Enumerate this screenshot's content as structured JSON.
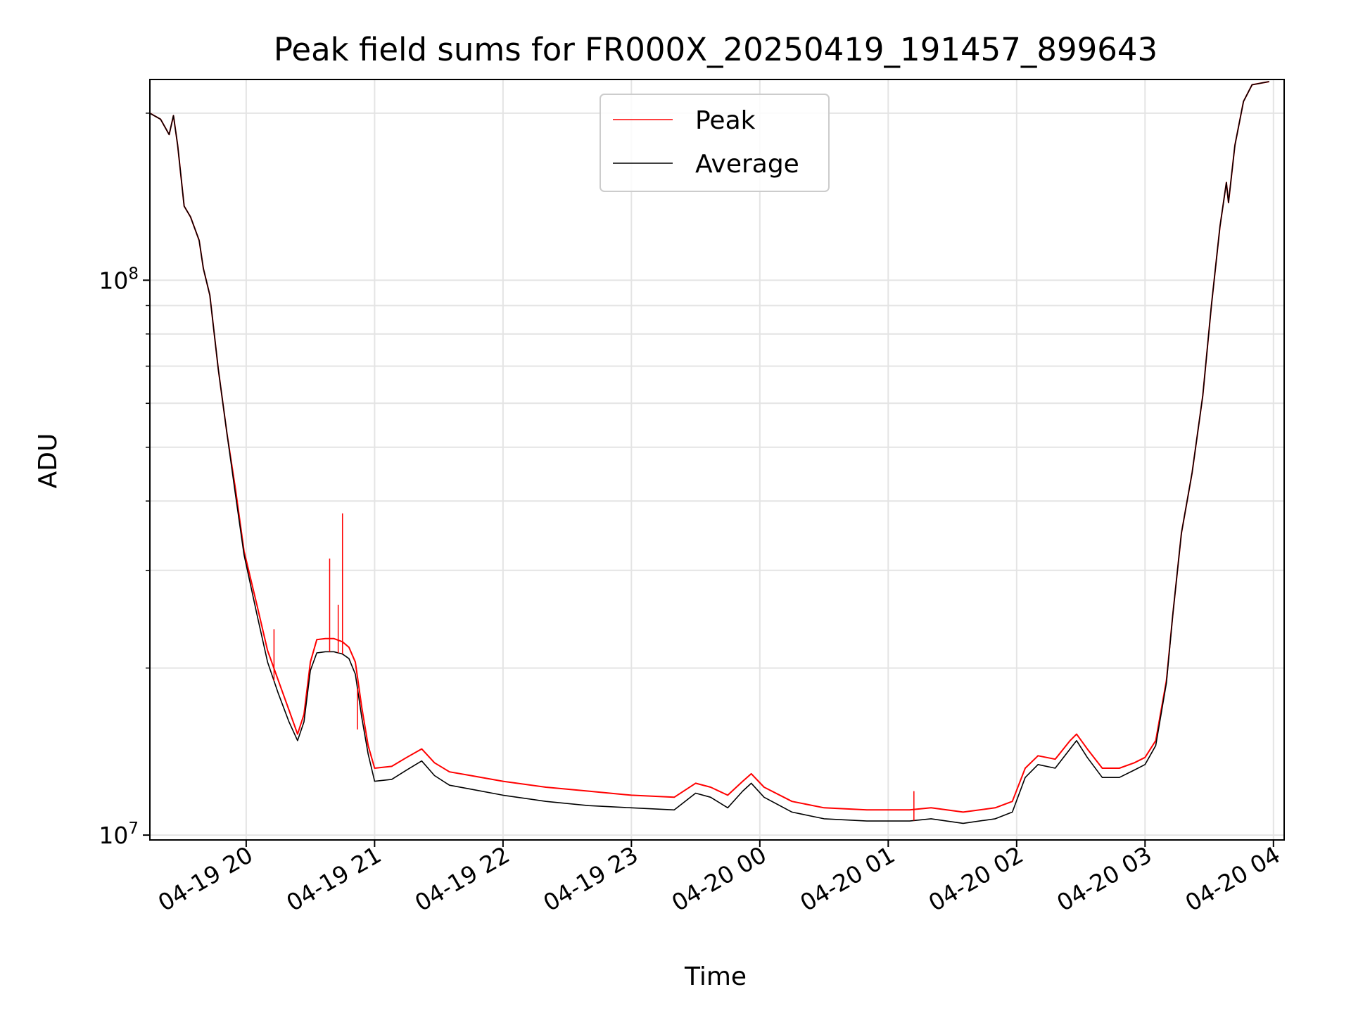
{
  "chart_data": {
    "type": "line",
    "title": "Peak field sums for FR000X_20250419_191457_899643",
    "xlabel": "Time",
    "ylabel": "ADU",
    "yscale": "log",
    "ylim": [
      9800000,
      230000000
    ],
    "xlim": [
      "2025-04-19 19:15",
      "2025-04-20 04:05"
    ],
    "grid": true,
    "legend_position": "top-center",
    "x_ticks": [
      {
        "t": "2025-04-19 20:00",
        "label": "04-19 20"
      },
      {
        "t": "2025-04-19 21:00",
        "label": "04-19 21"
      },
      {
        "t": "2025-04-19 22:00",
        "label": "04-19 22"
      },
      {
        "t": "2025-04-19 23:00",
        "label": "04-19 23"
      },
      {
        "t": "2025-04-20 00:00",
        "label": "04-20 00"
      },
      {
        "t": "2025-04-20 01:00",
        "label": "04-20 01"
      },
      {
        "t": "2025-04-20 02:00",
        "label": "04-20 02"
      },
      {
        "t": "2025-04-20 03:00",
        "label": "04-20 03"
      },
      {
        "t": "2025-04-20 04:00",
        "label": "04-20 04"
      }
    ],
    "y_major_ticks": [
      {
        "value": 10000000,
        "base": "10",
        "exp": "7"
      },
      {
        "value": 100000000,
        "base": "10",
        "exp": "8"
      }
    ],
    "series": [
      {
        "name": "Peak",
        "color": "#ff0000",
        "points": [
          [
            "2025-04-19 19:15",
            200000000
          ],
          [
            "2025-04-19 19:20",
            195000000
          ],
          [
            "2025-04-19 19:24",
            183000000
          ],
          [
            "2025-04-19 19:26",
            198000000
          ],
          [
            "2025-04-19 19:28",
            175000000
          ],
          [
            "2025-04-19 19:31",
            136000000
          ],
          [
            "2025-04-19 19:34",
            130000000
          ],
          [
            "2025-04-19 19:38",
            118000000
          ],
          [
            "2025-04-19 19:40",
            105000000
          ],
          [
            "2025-04-19 19:43",
            94000000
          ],
          [
            "2025-04-19 19:47",
            69000000
          ],
          [
            "2025-04-19 19:51",
            53000000
          ],
          [
            "2025-04-19 19:55",
            42000000
          ],
          [
            "2025-04-19 19:59",
            32500000
          ],
          [
            "2025-04-19 20:05",
            26000000
          ],
          [
            "2025-04-19 20:10",
            21500000
          ],
          [
            "2025-04-19 20:15",
            19000000
          ],
          [
            "2025-04-19 20:20",
            16800000
          ],
          [
            "2025-04-19 20:24",
            15200000
          ],
          [
            "2025-04-19 20:27",
            16500000
          ],
          [
            "2025-04-19 20:30",
            20500000
          ],
          [
            "2025-04-19 20:33",
            22500000
          ],
          [
            "2025-04-19 20:37",
            22600000
          ],
          [
            "2025-04-19 20:41",
            22600000
          ],
          [
            "2025-04-19 20:45",
            22300000
          ],
          [
            "2025-04-19 20:48",
            21800000
          ],
          [
            "2025-04-19 20:51",
            20500000
          ],
          [
            "2025-04-19 20:54",
            17000000
          ],
          [
            "2025-04-19 20:57",
            14500000
          ],
          [
            "2025-04-19 21:00",
            13200000
          ],
          [
            "2025-04-19 21:08",
            13300000
          ],
          [
            "2025-04-19 21:15",
            13800000
          ],
          [
            "2025-04-19 21:22",
            14300000
          ],
          [
            "2025-04-19 21:28",
            13500000
          ],
          [
            "2025-04-19 21:35",
            13000000
          ],
          [
            "2025-04-19 21:45",
            12800000
          ],
          [
            "2025-04-19 22:00",
            12500000
          ],
          [
            "2025-04-19 22:20",
            12200000
          ],
          [
            "2025-04-19 22:40",
            12000000
          ],
          [
            "2025-04-19 23:00",
            11800000
          ],
          [
            "2025-04-19 23:20",
            11700000
          ],
          [
            "2025-04-19 23:30",
            12400000
          ],
          [
            "2025-04-19 23:37",
            12200000
          ],
          [
            "2025-04-19 23:45",
            11800000
          ],
          [
            "2025-04-19 23:52",
            12500000
          ],
          [
            "2025-04-19 23:56",
            12900000
          ],
          [
            "2025-04-20 00:02",
            12200000
          ],
          [
            "2025-04-20 00:15",
            11500000
          ],
          [
            "2025-04-20 00:30",
            11200000
          ],
          [
            "2025-04-20 00:50",
            11100000
          ],
          [
            "2025-04-20 01:10",
            11100000
          ],
          [
            "2025-04-20 01:20",
            11200000
          ],
          [
            "2025-04-20 01:35",
            11000000
          ],
          [
            "2025-04-20 01:50",
            11200000
          ],
          [
            "2025-04-20 01:58",
            11500000
          ],
          [
            "2025-04-20 02:04",
            13200000
          ],
          [
            "2025-04-20 02:10",
            13900000
          ],
          [
            "2025-04-20 02:18",
            13700000
          ],
          [
            "2025-04-20 02:25",
            14800000
          ],
          [
            "2025-04-20 02:28",
            15200000
          ],
          [
            "2025-04-20 02:33",
            14300000
          ],
          [
            "2025-04-20 02:40",
            13200000
          ],
          [
            "2025-04-20 02:48",
            13200000
          ],
          [
            "2025-04-20 02:55",
            13500000
          ],
          [
            "2025-04-20 03:00",
            13800000
          ],
          [
            "2025-04-20 03:05",
            14800000
          ],
          [
            "2025-04-20 03:10",
            19000000
          ],
          [
            "2025-04-20 03:13",
            25000000
          ],
          [
            "2025-04-20 03:17",
            35000000
          ],
          [
            "2025-04-20 03:22",
            45000000
          ],
          [
            "2025-04-20 03:27",
            62000000
          ],
          [
            "2025-04-20 03:31",
            90000000
          ],
          [
            "2025-04-20 03:35",
            125000000
          ],
          [
            "2025-04-20 03:38",
            150000000
          ],
          [
            "2025-04-20 03:39",
            138000000
          ],
          [
            "2025-04-20 03:42",
            175000000
          ],
          [
            "2025-04-20 03:46",
            210000000
          ],
          [
            "2025-04-20 03:50",
            225000000
          ],
          [
            "2025-04-20 03:58",
            228000000
          ]
        ]
      },
      {
        "name": "Average",
        "color": "#000000",
        "points": [
          [
            "2025-04-19 19:15",
            200000000
          ],
          [
            "2025-04-19 19:20",
            195000000
          ],
          [
            "2025-04-19 19:24",
            183000000
          ],
          [
            "2025-04-19 19:26",
            198000000
          ],
          [
            "2025-04-19 19:28",
            175000000
          ],
          [
            "2025-04-19 19:31",
            136000000
          ],
          [
            "2025-04-19 19:34",
            130000000
          ],
          [
            "2025-04-19 19:38",
            118000000
          ],
          [
            "2025-04-19 19:40",
            105000000
          ],
          [
            "2025-04-19 19:43",
            94000000
          ],
          [
            "2025-04-19 19:47",
            69000000
          ],
          [
            "2025-04-19 19:51",
            53000000
          ],
          [
            "2025-04-19 19:55",
            41000000
          ],
          [
            "2025-04-19 19:59",
            32000000
          ],
          [
            "2025-04-19 20:05",
            25000000
          ],
          [
            "2025-04-19 20:10",
            20500000
          ],
          [
            "2025-04-19 20:15",
            18000000
          ],
          [
            "2025-04-19 20:20",
            16000000
          ],
          [
            "2025-04-19 20:24",
            14800000
          ],
          [
            "2025-04-19 20:27",
            16000000
          ],
          [
            "2025-04-19 20:30",
            19800000
          ],
          [
            "2025-04-19 20:33",
            21300000
          ],
          [
            "2025-04-19 20:37",
            21400000
          ],
          [
            "2025-04-19 20:41",
            21400000
          ],
          [
            "2025-04-19 20:45",
            21200000
          ],
          [
            "2025-04-19 20:48",
            20800000
          ],
          [
            "2025-04-19 20:51",
            19500000
          ],
          [
            "2025-04-19 20:54",
            16300000
          ],
          [
            "2025-04-19 20:57",
            14000000
          ],
          [
            "2025-04-19 21:00",
            12500000
          ],
          [
            "2025-04-19 21:08",
            12600000
          ],
          [
            "2025-04-19 21:15",
            13100000
          ],
          [
            "2025-04-19 21:22",
            13600000
          ],
          [
            "2025-04-19 21:28",
            12800000
          ],
          [
            "2025-04-19 21:35",
            12300000
          ],
          [
            "2025-04-19 21:45",
            12100000
          ],
          [
            "2025-04-19 22:00",
            11800000
          ],
          [
            "2025-04-19 22:20",
            11500000
          ],
          [
            "2025-04-19 22:40",
            11300000
          ],
          [
            "2025-04-19 23:00",
            11200000
          ],
          [
            "2025-04-19 23:20",
            11100000
          ],
          [
            "2025-04-19 23:30",
            11900000
          ],
          [
            "2025-04-19 23:37",
            11700000
          ],
          [
            "2025-04-19 23:45",
            11200000
          ],
          [
            "2025-04-19 23:52",
            12000000
          ],
          [
            "2025-04-19 23:56",
            12400000
          ],
          [
            "2025-04-20 00:02",
            11700000
          ],
          [
            "2025-04-20 00:15",
            11000000
          ],
          [
            "2025-04-20 00:30",
            10700000
          ],
          [
            "2025-04-20 00:50",
            10600000
          ],
          [
            "2025-04-20 01:10",
            10600000
          ],
          [
            "2025-04-20 01:20",
            10700000
          ],
          [
            "2025-04-20 01:35",
            10500000
          ],
          [
            "2025-04-20 01:50",
            10700000
          ],
          [
            "2025-04-20 01:58",
            11000000
          ],
          [
            "2025-04-20 02:04",
            12700000
          ],
          [
            "2025-04-20 02:10",
            13400000
          ],
          [
            "2025-04-20 02:18",
            13200000
          ],
          [
            "2025-04-20 02:25",
            14300000
          ],
          [
            "2025-04-20 02:28",
            14800000
          ],
          [
            "2025-04-20 02:33",
            13800000
          ],
          [
            "2025-04-20 02:40",
            12700000
          ],
          [
            "2025-04-20 02:48",
            12700000
          ],
          [
            "2025-04-20 02:55",
            13100000
          ],
          [
            "2025-04-20 03:00",
            13400000
          ],
          [
            "2025-04-20 03:05",
            14500000
          ],
          [
            "2025-04-20 03:10",
            18800000
          ],
          [
            "2025-04-20 03:13",
            25000000
          ],
          [
            "2025-04-20 03:17",
            35000000
          ],
          [
            "2025-04-20 03:22",
            45000000
          ],
          [
            "2025-04-20 03:27",
            62000000
          ],
          [
            "2025-04-20 03:31",
            90000000
          ],
          [
            "2025-04-20 03:35",
            125000000
          ],
          [
            "2025-04-20 03:38",
            150000000
          ],
          [
            "2025-04-20 03:39",
            138000000
          ],
          [
            "2025-04-20 03:42",
            175000000
          ],
          [
            "2025-04-20 03:46",
            210000000
          ],
          [
            "2025-04-20 03:50",
            225000000
          ],
          [
            "2025-04-20 03:58",
            228000000
          ]
        ]
      }
    ],
    "peak_spikes": [
      [
        "2025-04-19 20:13",
        23500000
      ],
      [
        "2025-04-19 20:39",
        31500000
      ],
      [
        "2025-04-19 20:43",
        26000000
      ],
      [
        "2025-04-19 20:45",
        38000000
      ],
      [
        "2025-04-19 20:52",
        15500000
      ],
      [
        "2025-04-20 01:12",
        12000000
      ]
    ],
    "legend": {
      "items": [
        {
          "label": "Peak",
          "color": "#ff0000"
        },
        {
          "label": "Average",
          "color": "#000000"
        }
      ]
    }
  }
}
